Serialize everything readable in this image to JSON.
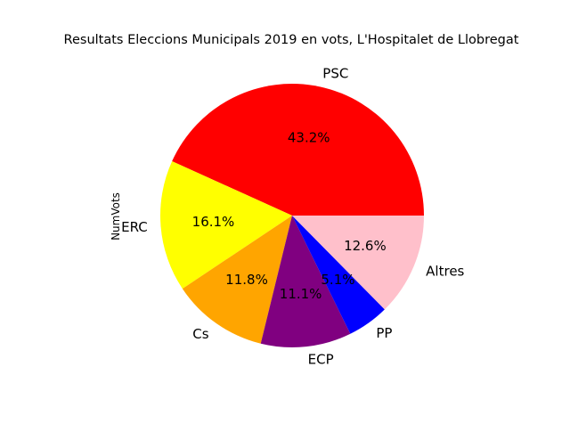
{
  "chart_data": {
    "type": "pie",
    "title": "Resultats Eleccions Municipals 2019 en vots, L'Hospitalet de Llobregat",
    "ylabel": "NumVots",
    "legend": "none",
    "start_angle_deg": 0,
    "direction": "counterclockwise",
    "slices": [
      {
        "label": "PSC",
        "percent": 43.2,
        "percent_label": "43.2%",
        "color": "#ff0000"
      },
      {
        "label": "ERC",
        "percent": 16.1,
        "percent_label": "16.1%",
        "color": "#ffff00"
      },
      {
        "label": "Cs",
        "percent": 11.8,
        "percent_label": "11.8%",
        "color": "#ffa500"
      },
      {
        "label": "ECP",
        "percent": 11.1,
        "percent_label": "11.1%",
        "color": "#800080"
      },
      {
        "label": "PP",
        "percent": 5.1,
        "percent_label": "5.1%",
        "color": "#0000ff"
      },
      {
        "label": "Altres",
        "percent": 12.6,
        "percent_label": "12.6%",
        "color": "#ffc0cb"
      }
    ]
  }
}
